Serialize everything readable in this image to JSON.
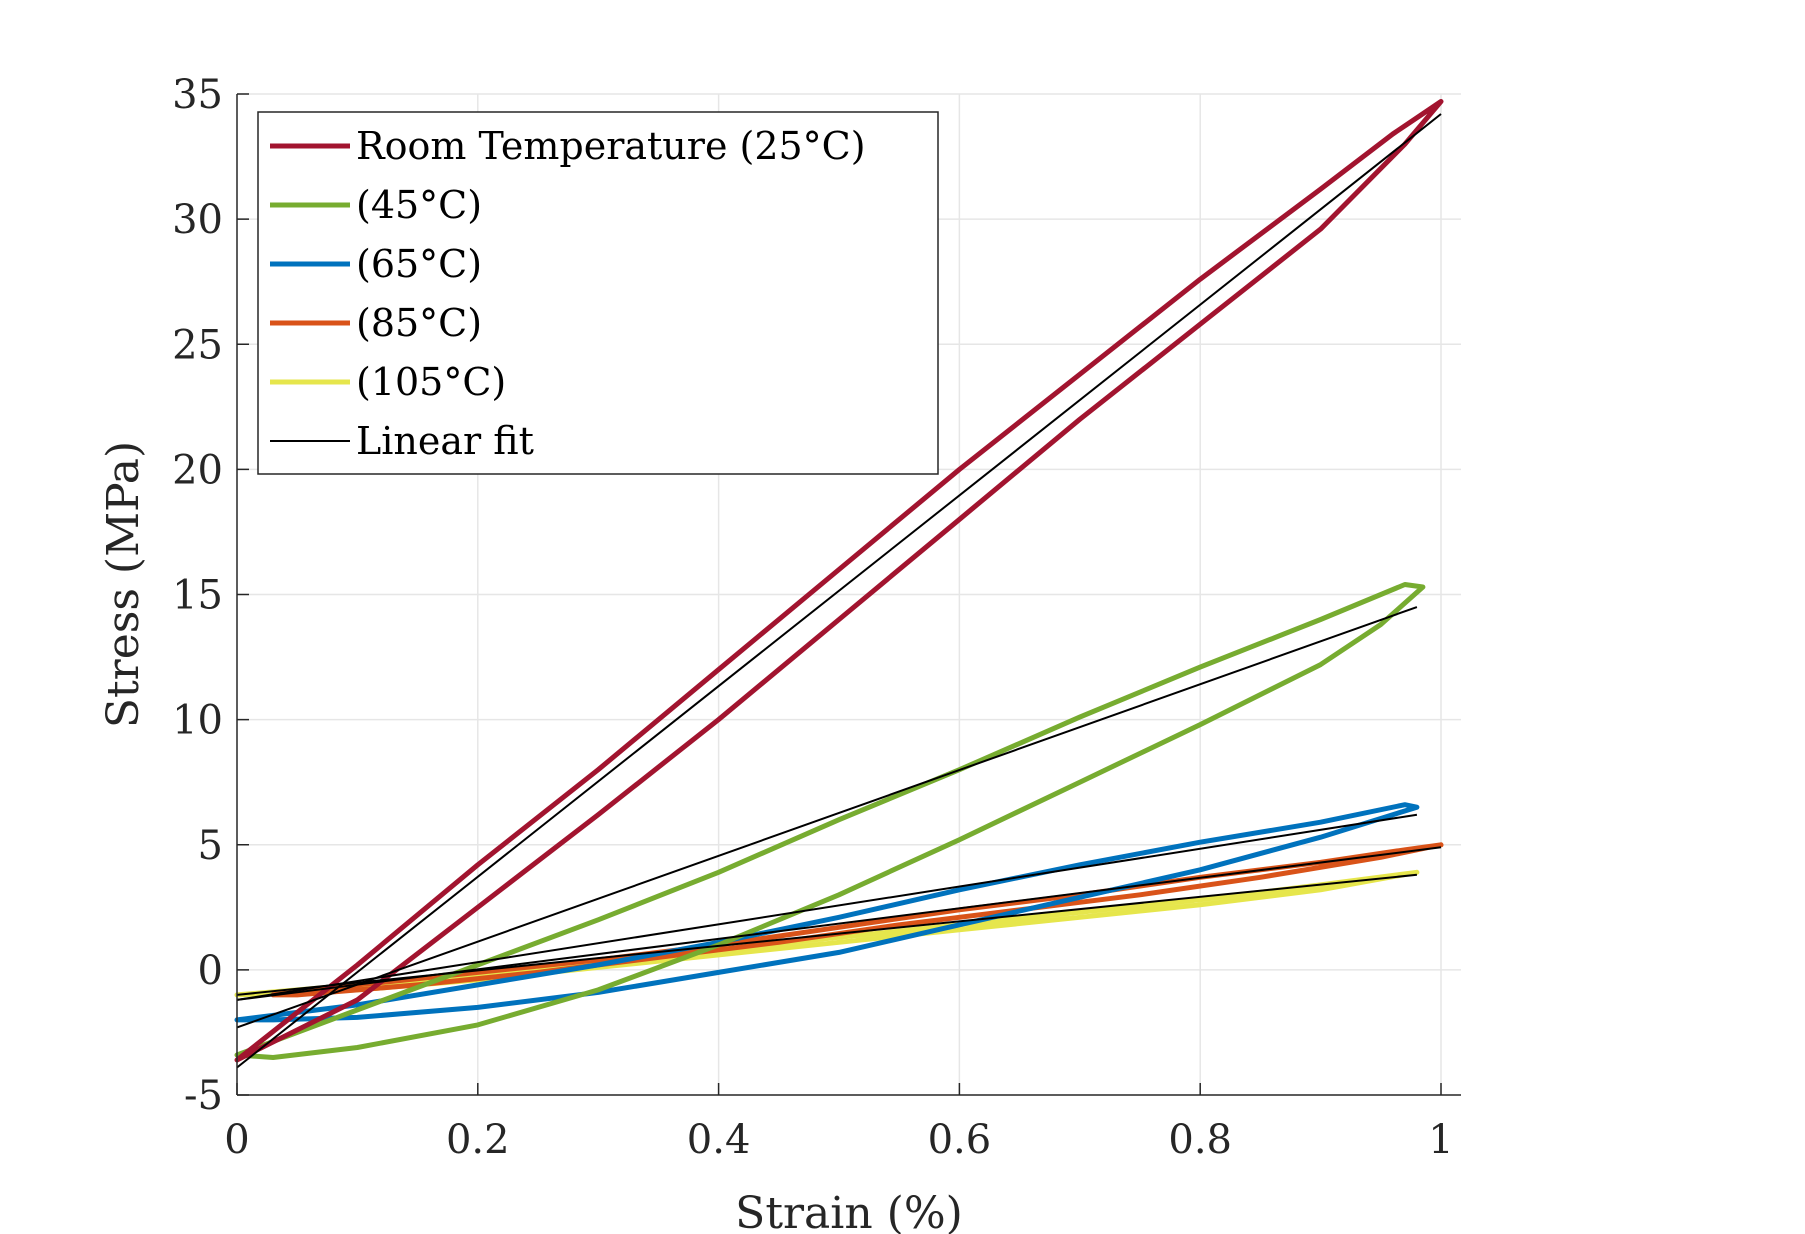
{
  "chart_data": {
    "type": "line",
    "xlabel": "Strain (%)",
    "ylabel": "Stress (MPa)",
    "xlim": [
      0,
      1.02
    ],
    "ylim": [
      -5,
      35
    ],
    "xticks": [
      0,
      0.2,
      0.4,
      0.6,
      0.8,
      1
    ],
    "xtick_labels": [
      "0",
      "0.2",
      "0.4",
      "0.6",
      "0.8",
      "1"
    ],
    "yticks": [
      -5,
      0,
      5,
      10,
      15,
      20,
      25,
      30,
      35
    ],
    "ytick_labels": [
      "-5",
      "0",
      "5",
      "10",
      "15",
      "20",
      "25",
      "30",
      "35"
    ],
    "grid": true,
    "legend_position": "top-left",
    "series": [
      {
        "name": "Room Temperature (25°C)",
        "color": "#a2142f",
        "points": [
          [
            0,
            -3.6
          ],
          [
            0.1,
            0.2
          ],
          [
            0.2,
            4.2
          ],
          [
            0.3,
            8.0
          ],
          [
            0.4,
            12.0
          ],
          [
            0.5,
            16.0
          ],
          [
            0.6,
            20.0
          ],
          [
            0.7,
            23.8
          ],
          [
            0.8,
            27.6
          ],
          [
            0.9,
            31.2
          ],
          [
            0.96,
            33.4
          ],
          [
            1.0,
            34.7
          ],
          [
            0.97,
            33.0
          ],
          [
            0.9,
            29.6
          ],
          [
            0.8,
            25.8
          ],
          [
            0.7,
            22.0
          ],
          [
            0.6,
            18.0
          ],
          [
            0.5,
            14.0
          ],
          [
            0.4,
            10.0
          ],
          [
            0.3,
            6.2
          ],
          [
            0.2,
            2.5
          ],
          [
            0.1,
            -1.2
          ],
          [
            0,
            -3.6
          ]
        ]
      },
      {
        "name": "(45°C)",
        "color": "#77ac30",
        "points": [
          [
            0,
            -3.4
          ],
          [
            0.1,
            -1.6
          ],
          [
            0.2,
            0.2
          ],
          [
            0.3,
            2.0
          ],
          [
            0.4,
            3.9
          ],
          [
            0.5,
            6.0
          ],
          [
            0.6,
            8.0
          ],
          [
            0.7,
            10.1
          ],
          [
            0.8,
            12.1
          ],
          [
            0.9,
            14.0
          ],
          [
            0.97,
            15.4
          ],
          [
            0.985,
            15.3
          ],
          [
            0.95,
            13.8
          ],
          [
            0.9,
            12.2
          ],
          [
            0.8,
            9.8
          ],
          [
            0.7,
            7.5
          ],
          [
            0.6,
            5.2
          ],
          [
            0.5,
            3.0
          ],
          [
            0.4,
            1.0
          ],
          [
            0.3,
            -0.8
          ],
          [
            0.2,
            -2.2
          ],
          [
            0.1,
            -3.1
          ],
          [
            0.03,
            -3.5
          ],
          [
            0,
            -3.4
          ]
        ]
      },
      {
        "name": "(65°C)",
        "color": "#0072bd",
        "points": [
          [
            0,
            -2.0
          ],
          [
            0.1,
            -1.4
          ],
          [
            0.2,
            -0.6
          ],
          [
            0.3,
            0.2
          ],
          [
            0.4,
            1.1
          ],
          [
            0.5,
            2.1
          ],
          [
            0.6,
            3.2
          ],
          [
            0.7,
            4.2
          ],
          [
            0.8,
            5.1
          ],
          [
            0.9,
            5.9
          ],
          [
            0.97,
            6.6
          ],
          [
            0.98,
            6.5
          ],
          [
            0.9,
            5.3
          ],
          [
            0.8,
            4.0
          ],
          [
            0.7,
            2.9
          ],
          [
            0.6,
            1.8
          ],
          [
            0.5,
            0.7
          ],
          [
            0.4,
            -0.1
          ],
          [
            0.3,
            -0.9
          ],
          [
            0.2,
            -1.5
          ],
          [
            0.1,
            -1.9
          ],
          [
            0.03,
            -2.0
          ],
          [
            0,
            -2.0
          ]
        ]
      },
      {
        "name": "(85°C)",
        "color": "#d95319",
        "points": [
          [
            0.03,
            -1.0
          ],
          [
            0.1,
            -0.6
          ],
          [
            0.2,
            -0.1
          ],
          [
            0.3,
            0.4
          ],
          [
            0.4,
            1.0
          ],
          [
            0.5,
            1.7
          ],
          [
            0.6,
            2.4
          ],
          [
            0.7,
            3.0
          ],
          [
            0.8,
            3.7
          ],
          [
            0.9,
            4.3
          ],
          [
            0.97,
            4.8
          ],
          [
            1.0,
            5.0
          ],
          [
            0.95,
            4.5
          ],
          [
            0.85,
            3.7
          ],
          [
            0.75,
            3.0
          ],
          [
            0.65,
            2.4
          ],
          [
            0.55,
            1.8
          ],
          [
            0.45,
            1.1
          ],
          [
            0.35,
            0.5
          ],
          [
            0.25,
            -0.1
          ],
          [
            0.15,
            -0.6
          ],
          [
            0.05,
            -1.0
          ],
          [
            0.03,
            -1.0
          ]
        ]
      },
      {
        "name": "(105°C)",
        "color": "#e6e64c",
        "points": [
          [
            0,
            -1.0
          ],
          [
            0.1,
            -0.6
          ],
          [
            0.2,
            -0.2
          ],
          [
            0.3,
            0.3
          ],
          [
            0.4,
            0.8
          ],
          [
            0.5,
            1.3
          ],
          [
            0.6,
            1.8
          ],
          [
            0.7,
            2.3
          ],
          [
            0.8,
            2.8
          ],
          [
            0.9,
            3.4
          ],
          [
            0.98,
            3.9
          ],
          [
            0.9,
            3.2
          ],
          [
            0.8,
            2.6
          ],
          [
            0.7,
            2.1
          ],
          [
            0.6,
            1.6
          ],
          [
            0.5,
            1.1
          ],
          [
            0.4,
            0.6
          ],
          [
            0.3,
            0.1
          ],
          [
            0.2,
            -0.4
          ],
          [
            0.1,
            -0.8
          ],
          [
            0,
            -1.0
          ]
        ]
      },
      {
        "name": "Linear fit",
        "color": "#000000",
        "segments": [
          [
            [
              0,
              -3.9
            ],
            [
              1.0,
              34.2
            ]
          ],
          [
            [
              0,
              -2.3
            ],
            [
              0.98,
              14.5
            ]
          ],
          [
            [
              0,
              -1.2
            ],
            [
              0.98,
              6.2
            ]
          ],
          [
            [
              0,
              -1.2
            ],
            [
              1.0,
              4.9
            ]
          ],
          [
            [
              0,
              -1.0
            ],
            [
              0.98,
              3.8
            ]
          ]
        ]
      }
    ]
  }
}
